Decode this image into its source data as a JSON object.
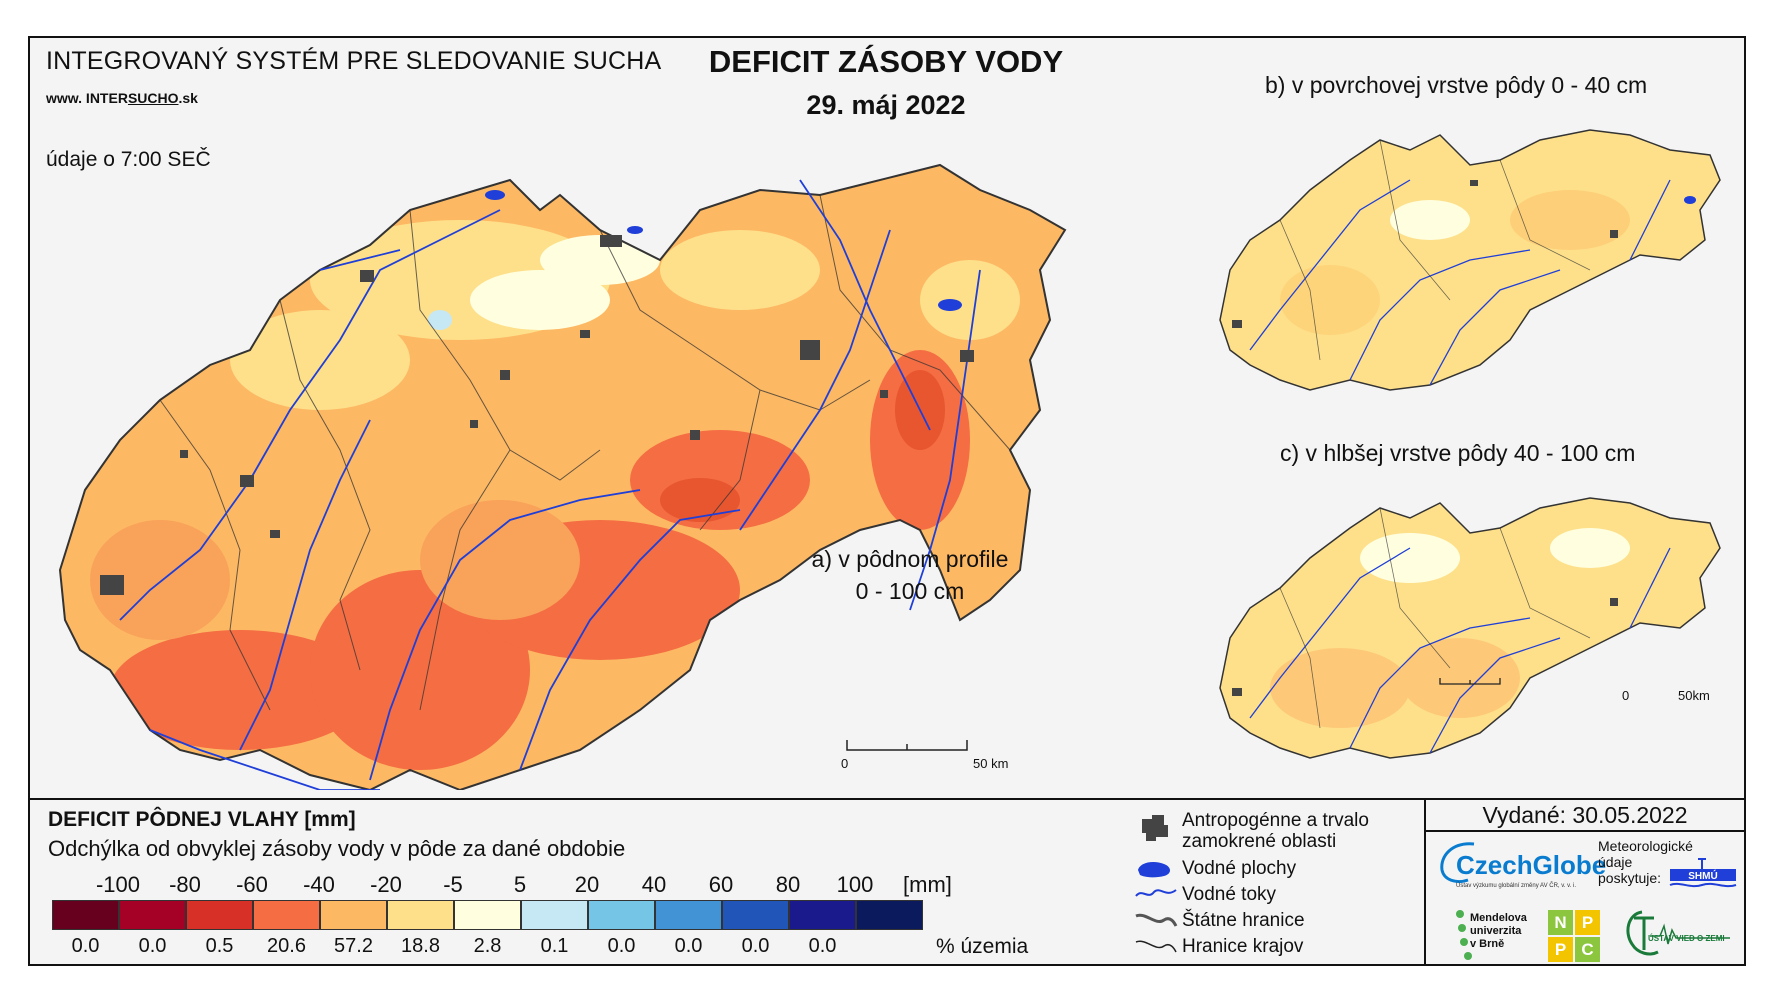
{
  "header": {
    "system_name": "INTEGROVANÝ SYSTÉM PRE SLEDOVANIE SUCHA",
    "website_prefix": "www. INTER",
    "website_underlined": "SUCHO",
    "website_suffix": ".sk",
    "time_note": "údaje o 7:00 SEČ"
  },
  "title": {
    "main": "DEFICIT ZÁSOBY VODY",
    "date": "29. máj 2022"
  },
  "maps": {
    "a": {
      "label_line1": "a) v pôdnom profile",
      "label_line2": "0 - 100 cm",
      "scale_labels": [
        "0",
        "50 km"
      ]
    },
    "b": {
      "label": "b) v povrchovej vrstve pôdy 0 - 40 cm"
    },
    "c": {
      "label": "c) v hlbšej vrstve pôdy 40 - 100 cm",
      "scale_labels": [
        "0",
        "50km"
      ]
    }
  },
  "legend": {
    "title": "DEFICIT PÔDNEJ VLAHY [mm]",
    "subtitle": "Odchýlka od obvyklej zásoby vody v pôde za dané obdobie",
    "ticks": [
      "-100",
      "-80",
      "-60",
      "-40",
      "-20",
      "-5",
      "5",
      "20",
      "40",
      "60",
      "80",
      "100"
    ],
    "unit": "[mm]",
    "bins": [
      {
        "color": "#67001f",
        "percent": "0.0"
      },
      {
        "color": "#a50026",
        "percent": "0.0"
      },
      {
        "color": "#d73027",
        "percent": "0.5"
      },
      {
        "color": "#f46d43",
        "percent": "20.6"
      },
      {
        "color": "#fdb863",
        "percent": "57.2"
      },
      {
        "color": "#fee08b",
        "percent": "18.8"
      },
      {
        "color": "#ffffe0",
        "percent": "2.8"
      },
      {
        "color": "#c6e8f5",
        "percent": "0.1"
      },
      {
        "color": "#74c5e6",
        "percent": "0.0"
      },
      {
        "color": "#4292d6",
        "percent": "0.0"
      },
      {
        "color": "#2255b8",
        "percent": "0.0"
      },
      {
        "color": "#1a1a8c",
        "percent": "0.0"
      },
      {
        "color": "#0a1a5c",
        "percent": ""
      }
    ],
    "percent_label": "% územia"
  },
  "symbols": {
    "urban_line1": "Antropogénne a trvalo",
    "urban_line2": "zamokrené oblasti",
    "water_bodies": "Vodné plochy",
    "rivers": "Vodné toky",
    "state_border": "Štátne hranice",
    "region_border": "Hranice krajov"
  },
  "info": {
    "issued": "Vydané: 30.05.2022",
    "meteo_line1": "Meteorologické",
    "meteo_line2": "údaje",
    "meteo_line3": "poskytuje:",
    "czechglobe": "CzechGlobe",
    "czechglobe_sub": "Ústav výzkumu globální změny AV ČR, v. v. i.",
    "mendel_line1": "Mendelova",
    "mendel_line2": "univerzita",
    "mendel_line3": "v Brně",
    "npc": [
      "N",
      "P",
      "P",
      "C"
    ],
    "shmu": "SHMÚ",
    "ustav": "ÚSTAV VIED O ZEMI"
  },
  "colors": {
    "deficit_strong": "#f46d43",
    "deficit_moderate": "#fdb863",
    "deficit_light": "#fee08b",
    "river": "#1f3fd8",
    "urban": "#444444",
    "czechglobe_blue": "#0a7ccf",
    "npc_green": "#8cc63f",
    "npc_yellow": "#f2c500"
  }
}
